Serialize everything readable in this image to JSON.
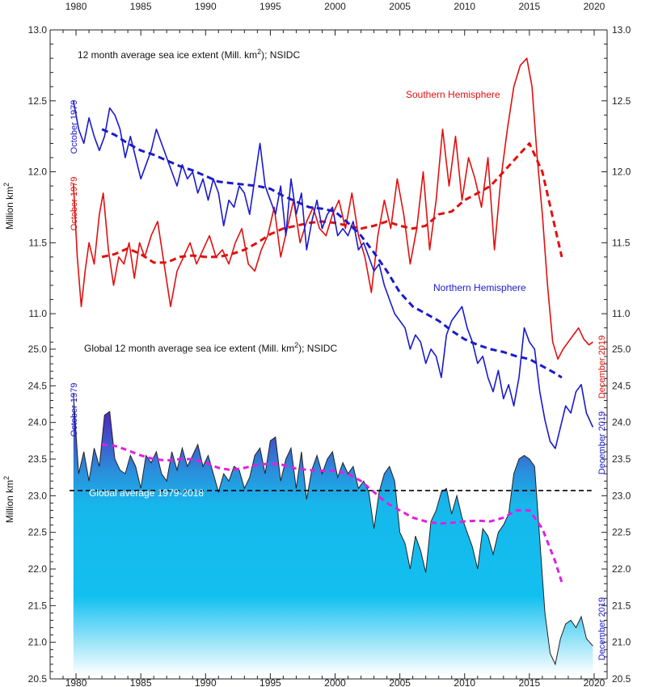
{
  "chart_data": [
    {
      "type": "line",
      "title": "12 month average sea ice extent (Mill. km2); NSIDC",
      "title_main": "12 month average sea ice extent (Mill. km",
      "title_sup": "2",
      "title_end": "); NSIDC",
      "ylabel": "Million km",
      "ylabel_sup": "2",
      "ylim": [
        10.75,
        13.0
      ],
      "yticks": [
        "13.0",
        "12.5",
        "12.0",
        "11.5",
        "11.0"
      ],
      "yticks_right": [
        "13.0",
        "12.5",
        "12.0",
        "11.5",
        "11.0"
      ],
      "colors": {
        "north": "#1a1acc",
        "south": "#e01010"
      },
      "series": [
        {
          "name": "Southern Hemisphere",
          "style": "solid",
          "start_label": "October 1979",
          "end_label": "December 2019",
          "x": [
            1979.8,
            1980.1,
            1980.4,
            1980.7,
            1981.0,
            1981.4,
            1981.8,
            1982.1,
            1982.5,
            1982.9,
            1983.3,
            1983.7,
            1984.1,
            1984.5,
            1984.9,
            1985.3,
            1985.8,
            1986.3,
            1986.8,
            1987.3,
            1987.8,
            1988.3,
            1988.8,
            1989.3,
            1989.8,
            1990.3,
            1990.8,
            1991.3,
            1991.8,
            1992.3,
            1992.8,
            1993.3,
            1993.8,
            1994.3,
            1994.8,
            1995.3,
            1995.8,
            1996.3,
            1996.8,
            1997.3,
            1997.8,
            1998.3,
            1998.8,
            1999.3,
            1999.8,
            2000.3,
            2000.8,
            2001.3,
            2001.8,
            2002.3,
            2002.8,
            2003.3,
            2003.8,
            2004.3,
            2004.8,
            2005.3,
            2005.8,
            2006.3,
            2006.8,
            2007.3,
            2007.8,
            2008.3,
            2008.8,
            2009.3,
            2009.8,
            2010.3,
            2010.8,
            2011.3,
            2011.8,
            2012.3,
            2012.8,
            2013.3,
            2013.8,
            2014.3,
            2014.8,
            2015.2,
            2015.6,
            2016.0,
            2016.4,
            2016.8,
            2017.2,
            2017.6,
            2018.0,
            2018.4,
            2018.8,
            2019.2,
            2019.6,
            2019.9
          ],
          "y": [
            11.92,
            11.4,
            11.05,
            11.3,
            11.5,
            11.35,
            11.7,
            11.85,
            11.45,
            11.2,
            11.4,
            11.35,
            11.5,
            11.25,
            11.5,
            11.4,
            11.55,
            11.65,
            11.35,
            11.05,
            11.3,
            11.4,
            11.5,
            11.35,
            11.45,
            11.55,
            11.4,
            11.45,
            11.35,
            11.5,
            11.6,
            11.35,
            11.3,
            11.45,
            11.55,
            11.75,
            11.4,
            11.6,
            11.8,
            11.5,
            11.65,
            11.75,
            11.6,
            11.55,
            11.7,
            11.8,
            11.6,
            11.85,
            11.55,
            11.4,
            11.15,
            11.55,
            11.8,
            11.6,
            11.95,
            11.7,
            11.35,
            11.6,
            12.0,
            11.45,
            11.8,
            12.3,
            11.9,
            12.25,
            11.8,
            12.1,
            11.95,
            11.75,
            12.1,
            11.45,
            11.95,
            12.3,
            12.6,
            12.75,
            12.8,
            12.6,
            12.1,
            11.7,
            11.2,
            10.8,
            10.68,
            10.75,
            10.8,
            10.85,
            10.9,
            10.82,
            10.78,
            10.8
          ]
        },
        {
          "name": "Southern Hemisphere trend",
          "style": "dashed",
          "x": [
            1982.0,
            1983.0,
            1984.0,
            1985.0,
            1986.0,
            1987.0,
            1988.0,
            1989.0,
            1990.0,
            1991.0,
            1992.0,
            1993.0,
            1994.0,
            1995.0,
            1996.0,
            1997.0,
            1998.0,
            1999.0,
            2000.0,
            2001.0,
            2002.0,
            2003.0,
            2004.0,
            2005.0,
            2006.0,
            2007.0,
            2008.0,
            2009.0,
            2010.0,
            2011.0,
            2012.0,
            2013.0,
            2014.0,
            2015.0,
            2016.0,
            2017.0,
            2017.5
          ],
          "y": [
            11.4,
            11.42,
            11.46,
            11.42,
            11.36,
            11.36,
            11.4,
            11.41,
            11.4,
            11.4,
            11.42,
            11.45,
            11.5,
            11.56,
            11.6,
            11.62,
            11.64,
            11.65,
            11.64,
            11.62,
            11.6,
            11.62,
            11.65,
            11.62,
            11.6,
            11.62,
            11.7,
            11.72,
            11.8,
            11.85,
            11.9,
            12.0,
            12.1,
            12.2,
            12.0,
            11.6,
            11.4
          ]
        },
        {
          "name": "Northern Hemisphere",
          "style": "solid",
          "start_label": "October 1979",
          "x": [
            1979.8,
            1980.2,
            1980.6,
            1981.0,
            1981.4,
            1981.8,
            1982.2,
            1982.6,
            1983.0,
            1983.4,
            1983.8,
            1984.2,
            1984.6,
            1985.0,
            1985.4,
            1985.8,
            1986.2,
            1986.6,
            1987.0,
            1987.4,
            1987.8,
            1988.2,
            1988.6,
            1989.0,
            1989.4,
            1989.8,
            1990.2,
            1990.6,
            1991.0,
            1991.4,
            1991.8,
            1992.2,
            1992.6,
            1993.0,
            1993.4,
            1993.8,
            1994.2,
            1994.6,
            1995.0,
            1995.4,
            1995.8,
            1996.2,
            1996.6,
            1997.0,
            1997.4,
            1997.8,
            1998.2,
            1998.6,
            1999.0,
            1999.4,
            1999.8,
            2000.2,
            2000.6,
            2001.0,
            2001.4,
            2001.8,
            2002.2,
            2002.6,
            2003.0,
            2003.4,
            2003.8,
            2004.2,
            2004.6,
            2005.0,
            2005.4,
            2005.8,
            2006.2,
            2006.6,
            2007.0,
            2007.4,
            2007.8,
            2008.2,
            2008.6,
            2009.0,
            2009.4,
            2009.8,
            2010.2,
            2010.6,
            2011.0,
            2011.4,
            2011.8,
            2012.2,
            2012.6,
            2013.0,
            2013.4,
            2013.8,
            2014.2,
            2014.6,
            2015.0,
            2015.4,
            2015.8,
            2016.2,
            2016.6,
            2017.0,
            2017.4,
            2017.8,
            2018.2,
            2018.6,
            2019.0,
            2019.4,
            2019.9
          ],
          "y": [
            12.5,
            12.3,
            12.2,
            12.38,
            12.25,
            12.15,
            12.25,
            12.45,
            12.4,
            12.3,
            12.1,
            12.25,
            12.1,
            11.95,
            12.05,
            12.15,
            12.3,
            12.2,
            12.1,
            12.0,
            11.9,
            12.05,
            11.95,
            12.0,
            11.85,
            11.95,
            11.8,
            11.95,
            11.85,
            11.62,
            11.8,
            11.75,
            11.9,
            11.85,
            11.7,
            11.95,
            12.2,
            11.9,
            11.8,
            11.7,
            11.9,
            11.55,
            11.95,
            11.7,
            11.85,
            11.45,
            11.65,
            11.8,
            11.6,
            11.7,
            11.75,
            11.55,
            11.6,
            11.55,
            11.65,
            11.45,
            11.5,
            11.4,
            11.3,
            11.35,
            11.2,
            11.1,
            11.0,
            10.95,
            10.9,
            10.75,
            10.85,
            10.8,
            10.65,
            10.75,
            10.7,
            10.55,
            10.85,
            10.95,
            11.0,
            11.05,
            10.9,
            10.8,
            10.65,
            10.7,
            10.55,
            10.45,
            10.6,
            10.4,
            10.5,
            10.35,
            10.55,
            10.9,
            10.8,
            10.75,
            10.45,
            10.25,
            10.1,
            10.05,
            10.2,
            10.35,
            10.3,
            10.45,
            10.5,
            10.3,
            10.2
          ]
        },
        {
          "name": "Northern Hemisphere trend",
          "style": "dashed",
          "x": [
            1982.0,
            1983.0,
            1984.0,
            1985.0,
            1986.0,
            1987.0,
            1988.0,
            1989.0,
            1990.0,
            1991.0,
            1992.0,
            1993.0,
            1994.0,
            1995.0,
            1996.0,
            1997.0,
            1998.0,
            1999.0,
            2000.0,
            2001.0,
            2002.0,
            2003.0,
            2004.0,
            2005.0,
            2006.0,
            2007.0,
            2008.0,
            2009.0,
            2010.0,
            2011.0,
            2012.0,
            2013.0,
            2014.0,
            2015.0,
            2016.0,
            2017.0,
            2017.5
          ],
          "y": [
            12.3,
            12.26,
            12.2,
            12.15,
            12.12,
            12.08,
            12.04,
            12.01,
            11.97,
            11.93,
            11.92,
            11.91,
            11.9,
            11.88,
            11.83,
            11.79,
            11.75,
            11.74,
            11.72,
            11.64,
            11.55,
            11.43,
            11.3,
            11.15,
            11.05,
            11.0,
            10.95,
            10.88,
            10.82,
            10.78,
            10.75,
            10.73,
            10.7,
            10.68,
            10.63,
            10.58,
            10.55
          ]
        }
      ],
      "series_labels": [
        "Southern Hemisphere",
        "Northern Hemisphere"
      ]
    },
    {
      "type": "area",
      "title": "Global 12 month average sea ice extent (Mill. km2); NSIDC",
      "title_main": "Global 12 month average sea ice extent (Mill. km",
      "title_sup": "2",
      "title_end": "); NSIDC",
      "ylabel": "Million km",
      "ylabel_sup": "2",
      "ylim": [
        20.5,
        25.0
      ],
      "yticks": [
        "25.0",
        "24.5",
        "24.0",
        "23.5",
        "23.0",
        "22.5",
        "22.0",
        "21.5",
        "21.0",
        "20.5"
      ],
      "yticks_right": [
        "25.0",
        "24.5",
        "24.0",
        "23.5",
        "23.0",
        "22.5",
        "22.0",
        "21.5",
        "21.0",
        "20.5"
      ],
      "average_label": "Global average 1979-2018",
      "average_value": 23.07,
      "start_label": "October 1979",
      "end_label": "December 2019",
      "colors": {
        "area_top": "#3a2fb0",
        "area_mid": "#16b8ec",
        "area_bottom": "#ffffff",
        "trend": "#e020e0",
        "average": "#000000"
      },
      "series": [
        {
          "name": "Global",
          "x": [
            1979.8,
            1980.2,
            1980.6,
            1981.0,
            1981.4,
            1981.8,
            1982.2,
            1982.6,
            1983.0,
            1983.4,
            1983.8,
            1984.2,
            1984.6,
            1985.0,
            1985.4,
            1985.8,
            1986.2,
            1986.6,
            1987.0,
            1987.4,
            1987.8,
            1988.2,
            1988.6,
            1989.0,
            1989.4,
            1989.8,
            1990.2,
            1990.6,
            1991.0,
            1991.4,
            1991.8,
            1992.2,
            1992.6,
            1993.0,
            1993.4,
            1993.8,
            1994.2,
            1994.6,
            1995.0,
            1995.4,
            1995.8,
            1996.2,
            1996.6,
            1997.0,
            1997.4,
            1997.8,
            1998.2,
            1998.6,
            1999.0,
            1999.4,
            1999.8,
            2000.2,
            2000.6,
            2001.0,
            2001.4,
            2001.8,
            2002.2,
            2002.6,
            2003.0,
            2003.4,
            2003.8,
            2004.2,
            2004.6,
            2005.0,
            2005.4,
            2005.8,
            2006.2,
            2006.6,
            2007.0,
            2007.4,
            2007.8,
            2008.2,
            2008.6,
            2009.0,
            2009.4,
            2009.8,
            2010.2,
            2010.6,
            2011.0,
            2011.4,
            2011.8,
            2012.2,
            2012.6,
            2013.0,
            2013.4,
            2013.8,
            2014.2,
            2014.6,
            2015.0,
            2015.4,
            2015.8,
            2016.2,
            2016.6,
            2017.0,
            2017.4,
            2017.8,
            2018.2,
            2018.6,
            2019.0,
            2019.4,
            2019.9
          ],
          "y": [
            24.4,
            23.3,
            23.6,
            23.2,
            23.65,
            23.4,
            24.1,
            24.15,
            23.5,
            23.35,
            23.3,
            23.55,
            23.4,
            23.1,
            23.55,
            23.45,
            23.6,
            23.3,
            23.2,
            23.6,
            23.35,
            23.65,
            23.4,
            23.55,
            23.7,
            23.4,
            23.55,
            23.3,
            23.05,
            23.3,
            23.2,
            23.4,
            23.35,
            23.1,
            23.25,
            23.55,
            23.65,
            23.3,
            23.75,
            23.8,
            23.2,
            23.5,
            23.65,
            23.1,
            23.6,
            22.95,
            23.35,
            23.55,
            23.3,
            23.5,
            23.6,
            23.25,
            23.45,
            23.3,
            23.4,
            23.1,
            23.2,
            23.05,
            22.55,
            23.05,
            23.3,
            23.4,
            23.2,
            22.5,
            22.35,
            22.0,
            22.45,
            22.25,
            21.95,
            22.65,
            22.8,
            23.05,
            23.1,
            22.75,
            23.0,
            22.7,
            22.5,
            22.3,
            22.0,
            22.55,
            22.45,
            22.2,
            22.5,
            22.6,
            22.75,
            23.3,
            23.5,
            23.55,
            23.5,
            23.4,
            22.4,
            21.4,
            20.85,
            20.7,
            21.05,
            21.25,
            21.3,
            21.2,
            21.35,
            21.05,
            20.95
          ]
        },
        {
          "name": "Global trend",
          "style": "dashed",
          "x": [
            1982.0,
            1983.0,
            1984.0,
            1985.0,
            1986.0,
            1987.0,
            1988.0,
            1989.0,
            1990.0,
            1991.0,
            1992.0,
            1993.0,
            1994.0,
            1995.0,
            1996.0,
            1997.0,
            1998.0,
            1999.0,
            2000.0,
            2001.0,
            2002.0,
            2003.0,
            2004.0,
            2005.0,
            2006.0,
            2007.0,
            2008.0,
            2009.0,
            2010.0,
            2011.0,
            2012.0,
            2013.0,
            2014.0,
            2015.0,
            2016.0,
            2017.0,
            2017.5
          ],
          "y": [
            23.7,
            23.68,
            23.62,
            23.55,
            23.5,
            23.48,
            23.5,
            23.5,
            23.45,
            23.38,
            23.35,
            23.38,
            23.42,
            23.44,
            23.42,
            23.37,
            23.35,
            23.34,
            23.34,
            23.3,
            23.2,
            23.05,
            22.9,
            22.8,
            22.7,
            22.65,
            22.62,
            22.63,
            22.65,
            22.66,
            22.65,
            22.7,
            22.8,
            22.8,
            22.55,
            22.1,
            21.82
          ]
        }
      ]
    }
  ],
  "x_axis": {
    "xlim": [
      1978.0,
      2021.0
    ],
    "tick_years": [
      "1980",
      "1985",
      "1990",
      "1995",
      "2000",
      "2005",
      "2010",
      "2015",
      "2020"
    ]
  }
}
